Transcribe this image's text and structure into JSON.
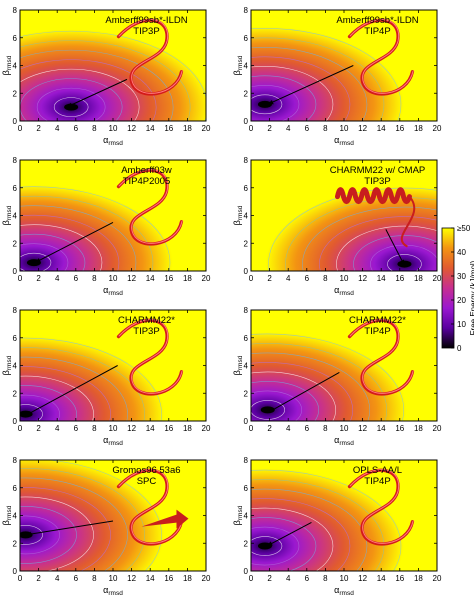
{
  "chart_data": [
    {
      "type": "heatmap",
      "title_lines": [
        "Amberff99sb*-ILDN",
        "TIP3P"
      ],
      "xlabel": "α_rmsd",
      "ylabel": "β_rmsd",
      "xlim": [
        0,
        20
      ],
      "ylim": [
        0,
        8
      ],
      "xticks": [
        0,
        2,
        4,
        6,
        8,
        10,
        12,
        14,
        16,
        18,
        20
      ],
      "yticks": [
        0,
        2,
        4,
        6,
        8
      ],
      "minimum": {
        "x": 5.5,
        "y": 1.0
      },
      "arrow": {
        "from": {
          "x": 11.5,
          "y": 3.0
        },
        "to": {
          "x": 5.0,
          "y": 1.0
        }
      },
      "structure": "coil"
    },
    {
      "type": "heatmap",
      "title_lines": [
        "Amberff99sb*-ILDN",
        "TIP4P"
      ],
      "xlabel": "α_rmsd",
      "ylabel": "β_rmsd",
      "xlim": [
        0,
        20
      ],
      "ylim": [
        0,
        8
      ],
      "xticks": [
        0,
        2,
        4,
        6,
        8,
        10,
        12,
        14,
        16,
        18,
        20
      ],
      "yticks": [
        0,
        2,
        4,
        6,
        8
      ],
      "minimum": {
        "x": 1.5,
        "y": 1.2
      },
      "arrow": {
        "from": {
          "x": 11.0,
          "y": 4.0
        },
        "to": {
          "x": 1.8,
          "y": 1.2
        }
      },
      "structure": "coil"
    },
    {
      "type": "heatmap",
      "title_lines": [
        "Amberff03w",
        "TIP4P2005"
      ],
      "xlabel": "α_rmsd",
      "ylabel": "β_rmsd",
      "xlim": [
        0,
        20
      ],
      "ylim": [
        0,
        8
      ],
      "xticks": [
        0,
        2,
        4,
        6,
        8,
        10,
        12,
        14,
        16,
        18,
        20
      ],
      "yticks": [
        0,
        2,
        4,
        6,
        8
      ],
      "minimum": {
        "x": 1.5,
        "y": 0.6
      },
      "arrow": {
        "from": {
          "x": 10.0,
          "y": 3.5
        },
        "to": {
          "x": 1.6,
          "y": 0.6
        }
      },
      "structure": "coil"
    },
    {
      "type": "heatmap",
      "title_lines": [
        "CHARMM22 w/ CMAP",
        "TIP3P"
      ],
      "xlabel": "α_rmsd",
      "ylabel": "β_rmsd",
      "xlim": [
        0,
        20
      ],
      "ylim": [
        0,
        8
      ],
      "xticks": [
        0,
        2,
        4,
        6,
        8,
        10,
        12,
        14,
        16,
        18,
        20
      ],
      "yticks": [
        0,
        2,
        4,
        6,
        8
      ],
      "minimum": {
        "x": 16.5,
        "y": 0.5
      },
      "arrow": {
        "from": {
          "x": 14.5,
          "y": 3.0
        },
        "to": {
          "x": 16.5,
          "y": 0.4
        }
      },
      "structure": "helix"
    },
    {
      "type": "heatmap",
      "title_lines": [
        "CHARMM22*",
        "TIP3P"
      ],
      "xlabel": "α_rmsd",
      "ylabel": "β_rmsd",
      "xlim": [
        0,
        20
      ],
      "ylim": [
        0,
        8
      ],
      "xticks": [
        0,
        2,
        4,
        6,
        8,
        10,
        12,
        14,
        16,
        18,
        20
      ],
      "yticks": [
        0,
        2,
        4,
        6,
        8
      ],
      "minimum": {
        "x": 0.6,
        "y": 0.5
      },
      "arrow": {
        "from": {
          "x": 10.5,
          "y": 4.0
        },
        "to": {
          "x": 0.6,
          "y": 0.4
        }
      },
      "structure": "coil"
    },
    {
      "type": "heatmap",
      "title_lines": [
        "CHARMM22*",
        "TIP4P"
      ],
      "xlabel": "α_rmsd",
      "ylabel": "β_rmsd",
      "xlim": [
        0,
        20
      ],
      "ylim": [
        0,
        8
      ],
      "xticks": [
        0,
        2,
        4,
        6,
        8,
        10,
        12,
        14,
        16,
        18,
        20
      ],
      "yticks": [
        0,
        2,
        4,
        6,
        8
      ],
      "minimum": {
        "x": 1.8,
        "y": 0.8
      },
      "arrow": {
        "from": {
          "x": 9.5,
          "y": 3.5
        },
        "to": {
          "x": 1.8,
          "y": 0.6
        }
      },
      "structure": "coil"
    },
    {
      "type": "heatmap",
      "title_lines": [
        "Gromos96 53a6",
        "SPC"
      ],
      "xlabel": "α_rmsd",
      "ylabel": "β_rmsd",
      "xlim": [
        0,
        20
      ],
      "ylim": [
        0,
        8
      ],
      "xticks": [
        0,
        2,
        4,
        6,
        8,
        10,
        12,
        14,
        16,
        18,
        20
      ],
      "yticks": [
        0,
        2,
        4,
        6,
        8
      ],
      "minimum": {
        "x": 0.6,
        "y": 2.6
      },
      "arrow": {
        "from": {
          "x": 10.0,
          "y": 3.6
        },
        "to": {
          "x": 0.6,
          "y": 2.6
        }
      },
      "structure": "sheet"
    },
    {
      "type": "heatmap",
      "title_lines": [
        "OPLS-AA/L",
        "TIP4P"
      ],
      "xlabel": "α_rmsd",
      "ylabel": "β_rmsd",
      "xlim": [
        0,
        20
      ],
      "ylim": [
        0,
        8
      ],
      "xticks": [
        0,
        2,
        4,
        6,
        8,
        10,
        12,
        14,
        16,
        18,
        20
      ],
      "yticks": [
        0,
        2,
        4,
        6,
        8
      ],
      "minimum": {
        "x": 1.5,
        "y": 1.8
      },
      "arrow": {
        "from": {
          "x": 6.5,
          "y": 3.5
        },
        "to": {
          "x": 1.7,
          "y": 1.8
        }
      },
      "structure": "coil"
    }
  ],
  "colorbar": {
    "label": "Free Energy (kJ/mol)",
    "range": [
      0,
      50
    ],
    "ticks": [
      "0",
      "10",
      "20",
      "30",
      "40",
      "≥50"
    ],
    "colors": [
      "#000000",
      "#5a00a0",
      "#9a18d0",
      "#c72f90",
      "#e15a30",
      "#f39412",
      "#ffff00"
    ]
  }
}
